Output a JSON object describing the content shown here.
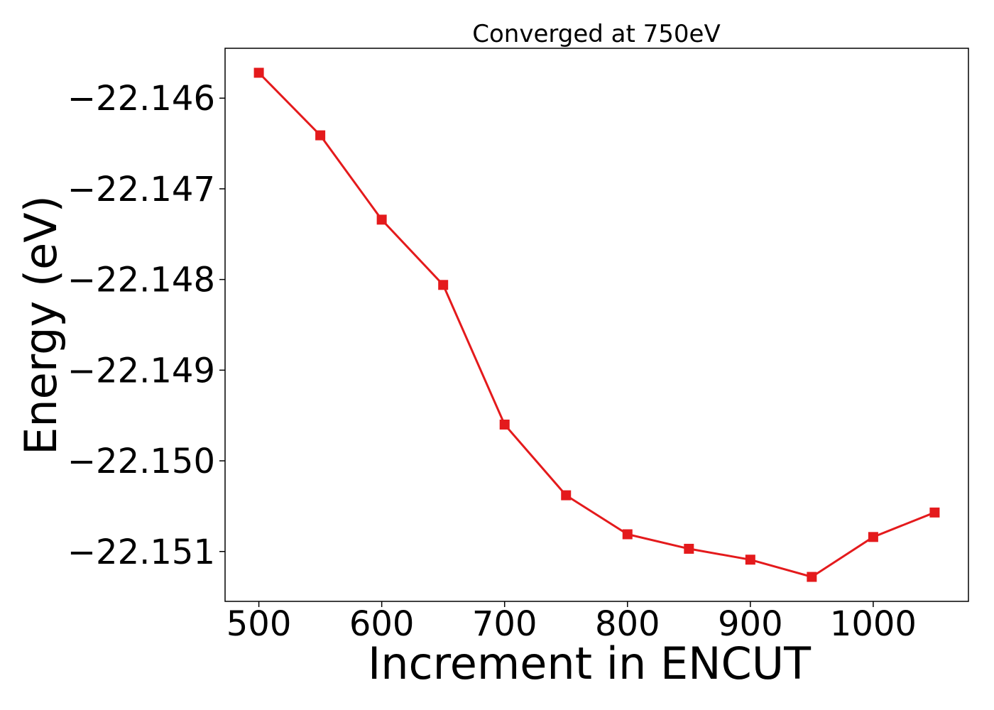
{
  "chart_data": {
    "type": "line",
    "title": "Converged at 750eV",
    "xlabel": "Increment in ENCUT",
    "ylabel": "Energy (eV)",
    "x": [
      500,
      550,
      600,
      650,
      700,
      750,
      800,
      850,
      900,
      950,
      1000,
      1050
    ],
    "series": [
      {
        "values": [
          -22.14572,
          -22.14641,
          -22.14734,
          -22.14806,
          -22.1496,
          -22.15038,
          -22.15081,
          -22.15097,
          -22.15109,
          -22.15128,
          -22.15084,
          -22.15057
        ],
        "color": "#e41a1c",
        "marker": "square"
      }
    ],
    "xticks": [
      500,
      600,
      700,
      800,
      900,
      1000
    ],
    "xtick_labels": [
      "500",
      "600",
      "700",
      "800",
      "900",
      "1000"
    ],
    "yticks": [
      -22.146,
      -22.147,
      -22.148,
      -22.149,
      -22.15,
      -22.151
    ],
    "ytick_labels": [
      "−22.146",
      "−22.147",
      "−22.148",
      "−22.149",
      "−22.150",
      "−22.151"
    ],
    "xlim": [
      472.5,
      1077.5
    ],
    "ylim": [
      -22.15155,
      -22.14545
    ],
    "grid": false,
    "legend": false
  }
}
